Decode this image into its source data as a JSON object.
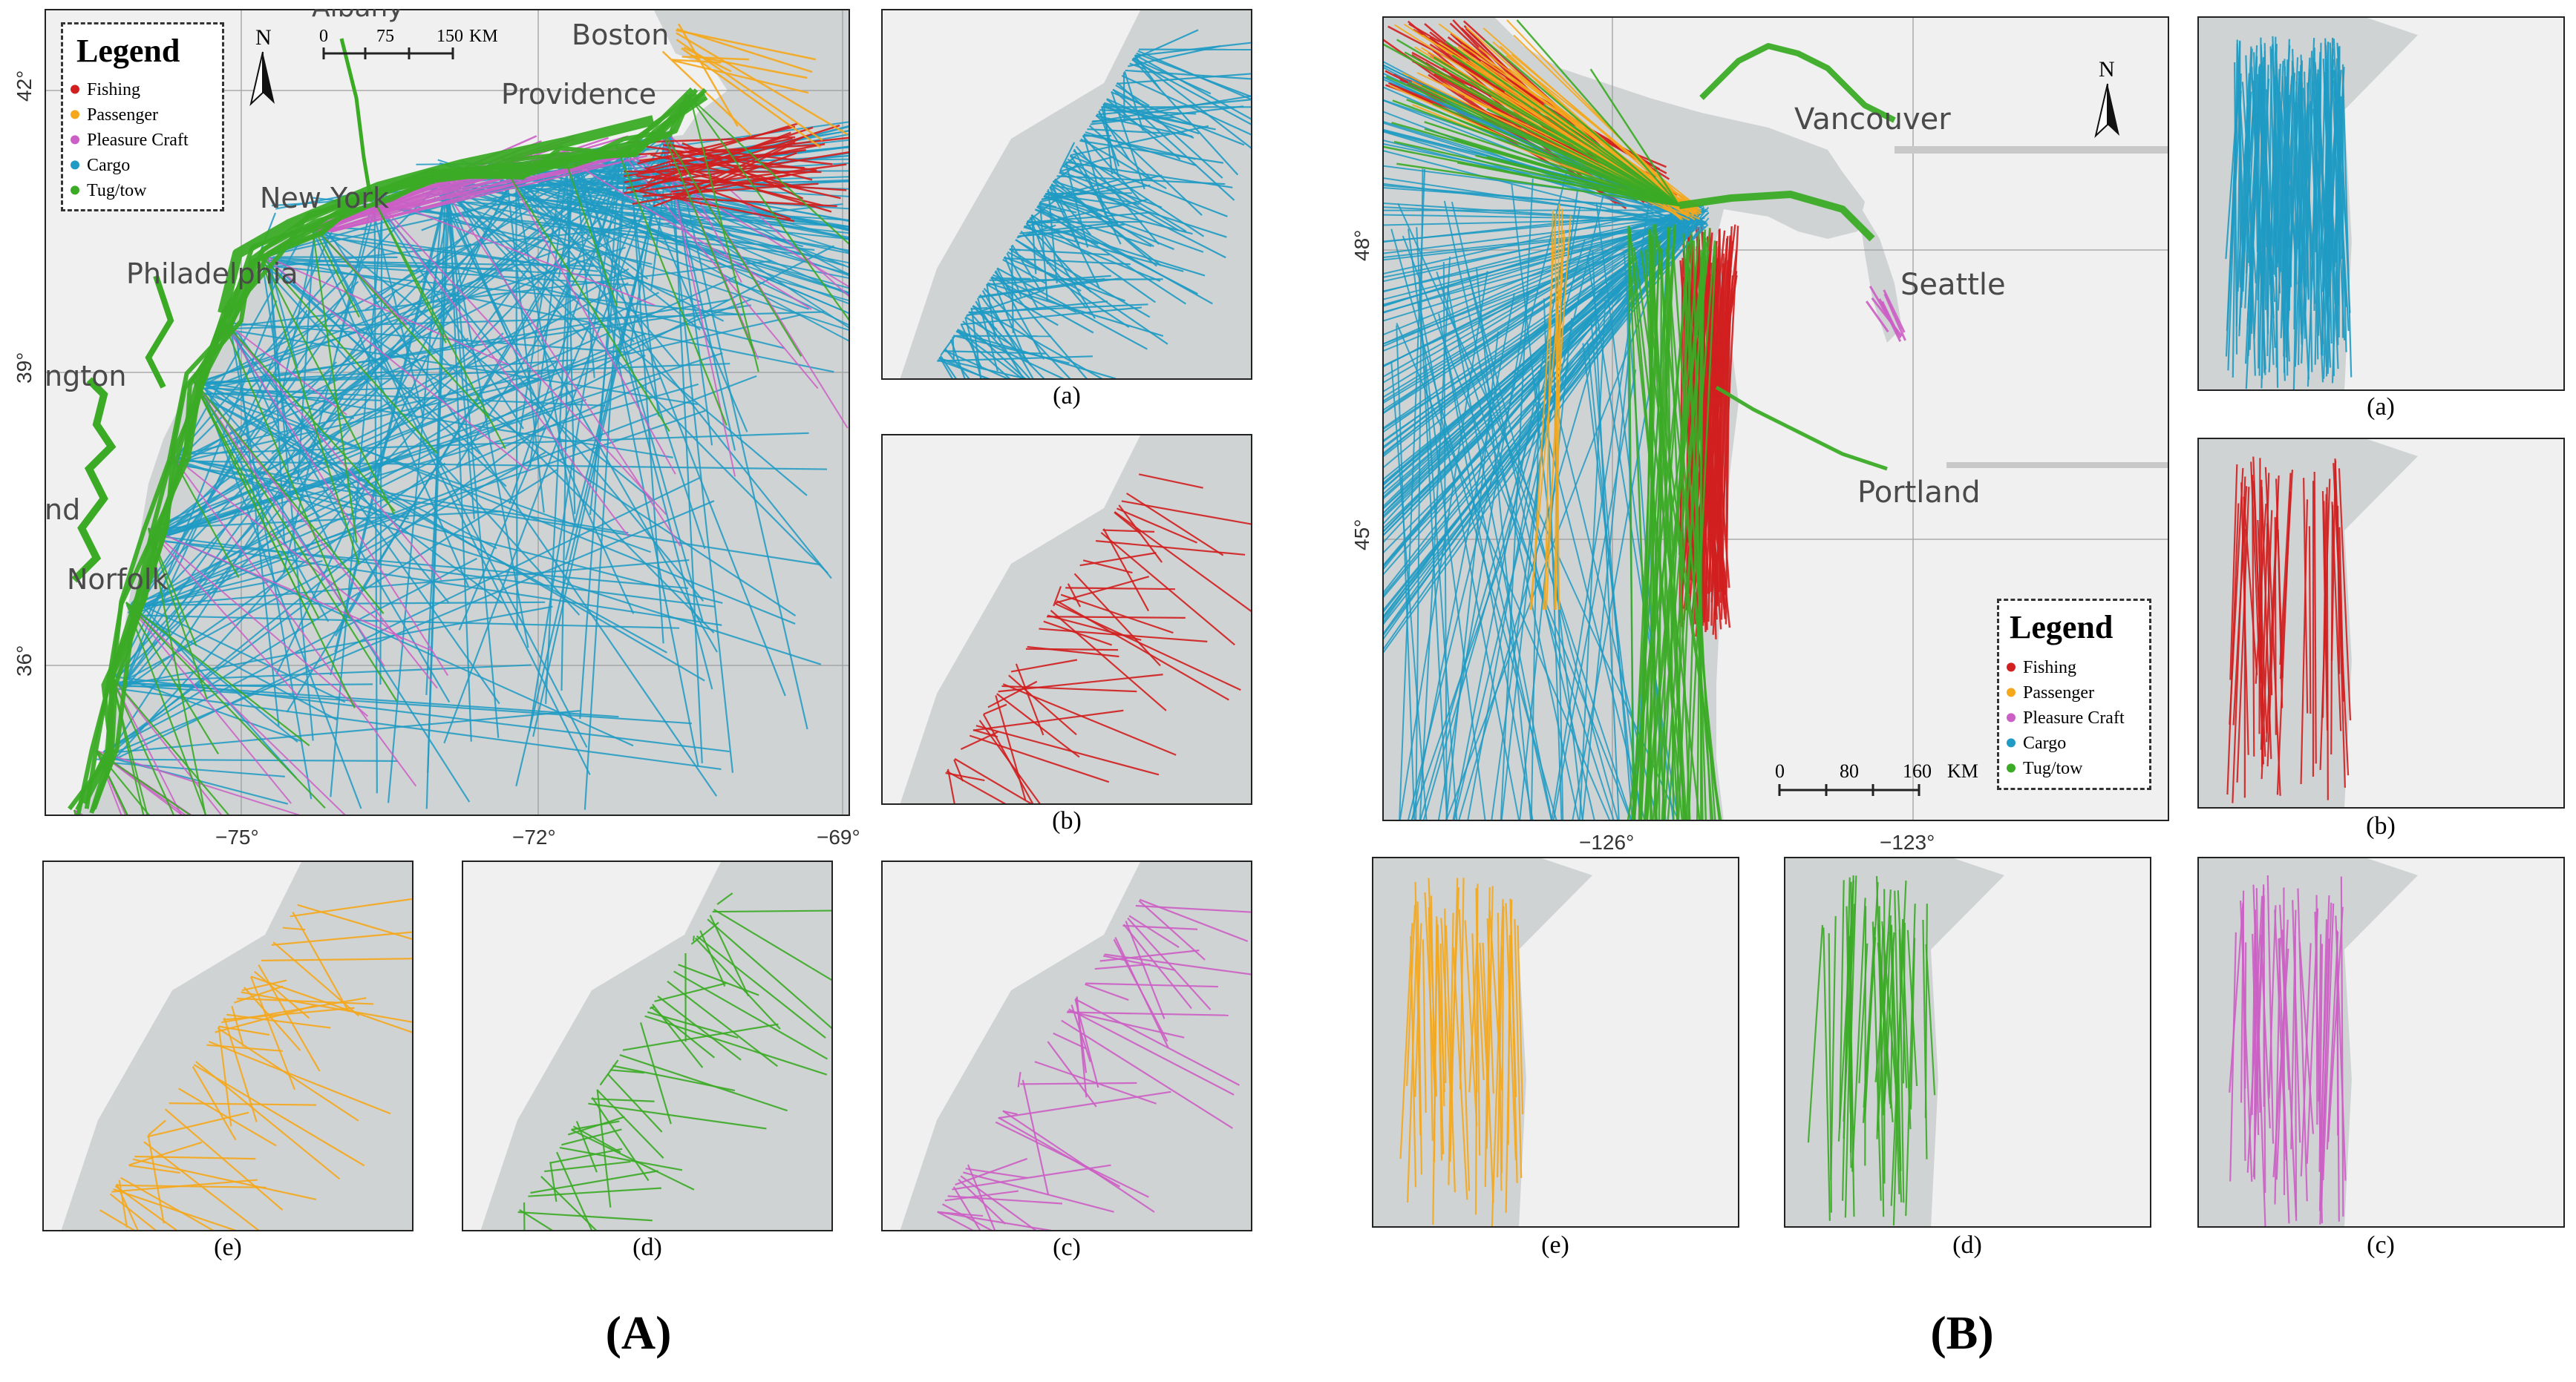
{
  "figure": {
    "labels": {
      "A": "(A)",
      "B": "(B)"
    },
    "colors": {
      "Fishing": "#d21f1f",
      "Passenger": "#f5a81c",
      "Pleasure Craft": "#cc5fc5",
      "Cargo": "#1f9bc4",
      "Tug/tow": "#3bab26",
      "land": "#f0f0f0",
      "sea": "#d0d3d4",
      "coast_shadow": "#bcbfc1"
    }
  },
  "panelA": {
    "legend": {
      "title": "Legend",
      "items": [
        "Fishing",
        "Passenger",
        "Pleasure Craft",
        "Cargo",
        "Tug/tow"
      ]
    },
    "north": "N",
    "scale": {
      "ticks": [
        "0",
        "75",
        "150"
      ],
      "unit": "KM"
    },
    "cities": [
      "Albany",
      "Boston",
      "Providence",
      "New York",
      "Philadelphia",
      "ngton",
      "nd",
      "Norfolk"
    ],
    "lat_ticks": [
      "42°",
      "39°",
      "36°"
    ],
    "lon_ticks": [
      "−75°",
      "−72°",
      "−69°"
    ],
    "sub_labels": [
      "(a)",
      "(b)",
      "(c)",
      "(d)",
      "(e)"
    ]
  },
  "panelB": {
    "legend": {
      "title": "Legend",
      "items": [
        "Fishing",
        "Passenger",
        "Pleasure Craft",
        "Cargo",
        "Tug/tow"
      ]
    },
    "north": "N",
    "scale": {
      "ticks": [
        "0",
        "80",
        "160"
      ],
      "unit": "KM"
    },
    "cities": [
      "Vancouver",
      "Seattle",
      "Portland"
    ],
    "lat_ticks": [
      "48°",
      "45°"
    ],
    "lon_ticks": [
      "−126°",
      "−123°"
    ],
    "sub_labels": [
      "(a)",
      "(b)",
      "(c)",
      "(d)",
      "(e)"
    ]
  }
}
